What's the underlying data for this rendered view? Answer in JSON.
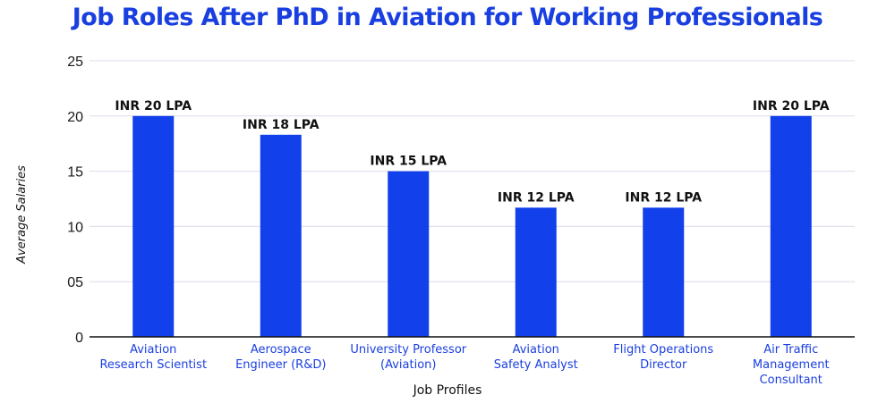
{
  "colors": {
    "title": "#1a3fe0",
    "bar": "#1240ea",
    "category_label": "#1a3fe0",
    "grid": "#dcdcec",
    "baseline": "#111111"
  },
  "chart_data": {
    "type": "bar",
    "title": "Job Roles After PhD in Aviation for Working Professionals",
    "xlabel": "Job Profiles",
    "ylabel": "Average Salaries",
    "ylim": [
      0,
      25
    ],
    "yticks": [
      0,
      5,
      10,
      15,
      20,
      25
    ],
    "ytick_labels": [
      "0",
      "05",
      "10",
      "15",
      "20",
      "25"
    ],
    "grid": true,
    "categories": [
      [
        "Aviation",
        "Research Scientist"
      ],
      [
        "Aerospace",
        "Engineer (R&D)"
      ],
      [
        "University Professor",
        "(Aviation)"
      ],
      [
        "Aviation",
        "Safety Analyst"
      ],
      [
        "Flight Operations",
        "Director"
      ],
      [
        "Air Traffic",
        "Management",
        "Consultant"
      ]
    ],
    "values": [
      20,
      18.3,
      15,
      11.7,
      11.7,
      20
    ],
    "data_labels": [
      "INR 20 LPA",
      "INR 18 LPA",
      "INR 15 LPA",
      "INR 12 LPA",
      "INR 12 LPA",
      "INR 20 LPA"
    ]
  }
}
